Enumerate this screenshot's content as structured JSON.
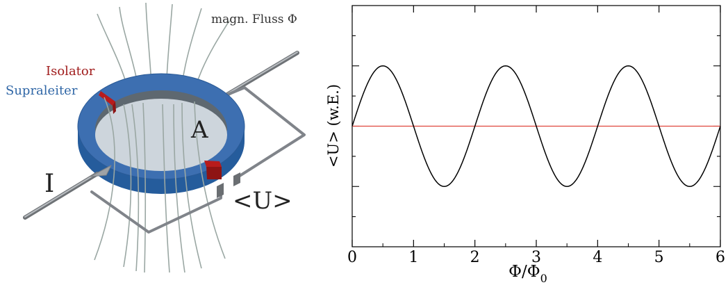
{
  "diagram": {
    "labels": {
      "flux": "magn. Fluss Φ",
      "isolator": "Isolator",
      "superconductor": "Supraleiter",
      "area": "A",
      "current": "I",
      "voltage": "<U>"
    },
    "colors": {
      "ring_top": "#3d6fb1",
      "ring_side": "#255c9c",
      "hole": "#cdd5dc",
      "isolator": "#b81c1c",
      "flux_lines": "#9aa7a3",
      "wire": "#8e9296",
      "isolator_text": "#a01c1c",
      "superconductor_text": "#2f66a6"
    }
  },
  "chart_data": {
    "type": "line",
    "title": "",
    "xlabel": "Φ/Φ",
    "xlabel_sub": "0",
    "ylabel": "<U> (w.E.)",
    "xlim": [
      0,
      6
    ],
    "ylim": [
      -2,
      2
    ],
    "xticks": [
      "0",
      "1",
      "2",
      "3",
      "4",
      "5",
      "6"
    ],
    "grid": false,
    "series": [
      {
        "function": "sin(pi*x)",
        "amplitude": 1,
        "x_range": [
          0,
          6
        ],
        "color": "#000000"
      },
      {
        "function": "constant",
        "value": 0,
        "x_range": [
          0,
          6
        ],
        "color": "#e0463c"
      }
    ]
  }
}
